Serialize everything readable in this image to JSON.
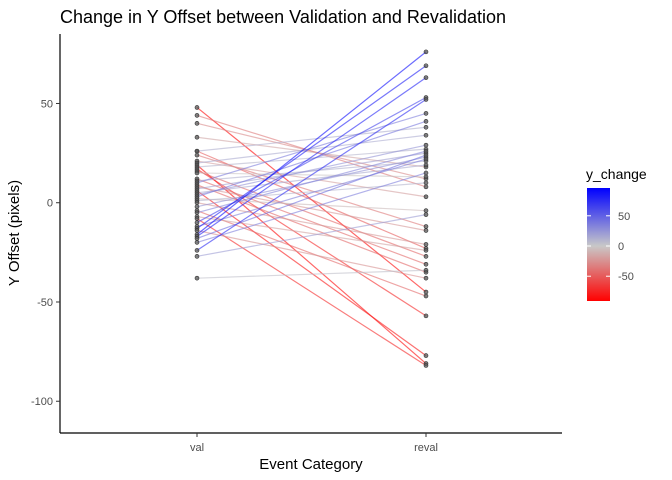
{
  "chart_data": {
    "type": "line",
    "title": "Change in Y Offset between Validation and Revalidation",
    "xlabel": "Event Category",
    "ylabel": "Y Offset (pixels)",
    "categories": [
      "val",
      "reval"
    ],
    "ylim": [
      -116,
      85
    ],
    "yticks": [
      50,
      0,
      -50,
      -100
    ],
    "ytick_labels": [
      "50",
      "0",
      "-50",
      "-100"
    ],
    "grid": false,
    "legend": {
      "title": "y_change",
      "position": "right",
      "range": [
        -91,
        96
      ],
      "breaks": [
        50,
        0,
        -50
      ],
      "break_labels": [
        "50",
        "0",
        "-50"
      ],
      "low_color": "#ff0000",
      "mid_color": "#c8c8c8",
      "high_color": "#0000ff"
    },
    "pairs": [
      [
        48,
        -45
      ],
      [
        44,
        8
      ],
      [
        40,
        12
      ],
      [
        33,
        18
      ],
      [
        26,
        38
      ],
      [
        26,
        -23
      ],
      [
        24,
        -12
      ],
      [
        21,
        3
      ],
      [
        20,
        34
      ],
      [
        19,
        -81
      ],
      [
        18,
        27
      ],
      [
        17,
        -57
      ],
      [
        16,
        -27
      ],
      [
        15,
        13
      ],
      [
        12,
        -31
      ],
      [
        11,
        21
      ],
      [
        10,
        45
      ],
      [
        9,
        -35
      ],
      [
        8,
        -14
      ],
      [
        7,
        25
      ],
      [
        6,
        -77
      ],
      [
        5,
        19
      ],
      [
        4,
        29
      ],
      [
        3,
        41
      ],
      [
        2,
        -4
      ],
      [
        1,
        10
      ],
      [
        0,
        -21
      ],
      [
        -2,
        23
      ],
      [
        -4,
        -47
      ],
      [
        -5,
        26
      ],
      [
        -7,
        -24
      ],
      [
        -8,
        -82
      ],
      [
        -10,
        53
      ],
      [
        -12,
        22
      ],
      [
        -13,
        69
      ],
      [
        -14,
        -38
      ],
      [
        -16,
        76
      ],
      [
        -17,
        63
      ],
      [
        -18,
        24
      ],
      [
        -20,
        15
      ],
      [
        -24,
        52
      ],
      [
        -27,
        -6
      ],
      [
        -38,
        -34
      ]
    ]
  }
}
